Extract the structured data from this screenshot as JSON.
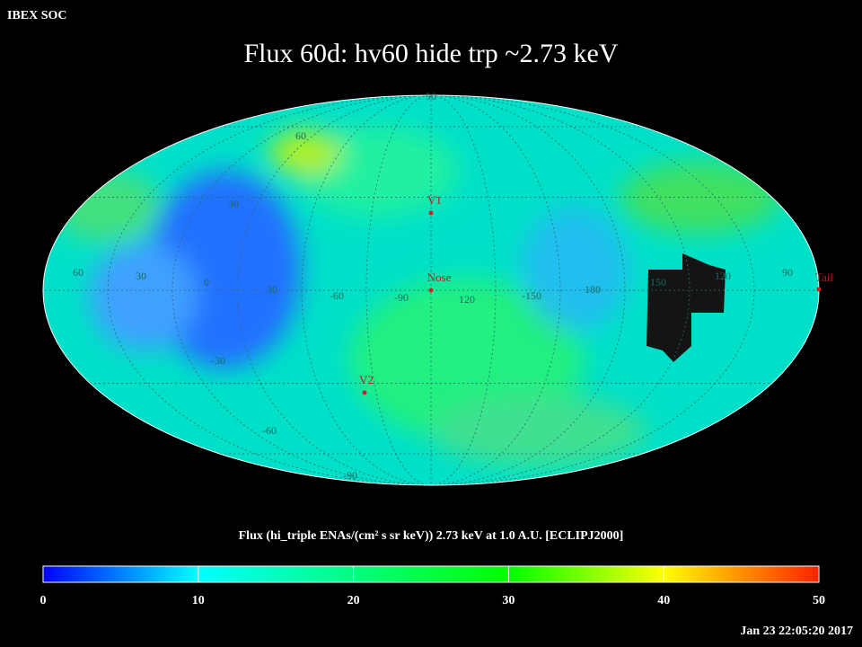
{
  "header": {
    "source": "IBEX SOC",
    "title": "Flux   60d: hv60 hide trp ~2.73 keV"
  },
  "map": {
    "latitude_labels": [
      "90",
      "60",
      "30",
      "-30",
      "-60",
      "-90"
    ],
    "longitude_labels": [
      "60",
      "30",
      "0",
      "30",
      "-60",
      "-90",
      "120",
      "-150",
      "180",
      "150",
      "120",
      "90"
    ],
    "markers": [
      "V1",
      "Nose",
      "V2",
      "Tail"
    ]
  },
  "colorbar": {
    "label": "Flux (hi_triple ENAs/(cm² s sr keV))  2.73 keV at 1.0 A.U. [ECLIPJ2000]",
    "lim": [
      0,
      50
    ],
    "ticks": [
      0,
      10,
      20,
      30,
      40,
      50
    ],
    "colors": [
      "#0000ff",
      "#00ffff",
      "#00ff80",
      "#00ff00",
      "#ffff00",
      "#ff2000"
    ]
  },
  "footer": {
    "timestamp": "Jan 23 22:05:20 2017"
  }
}
